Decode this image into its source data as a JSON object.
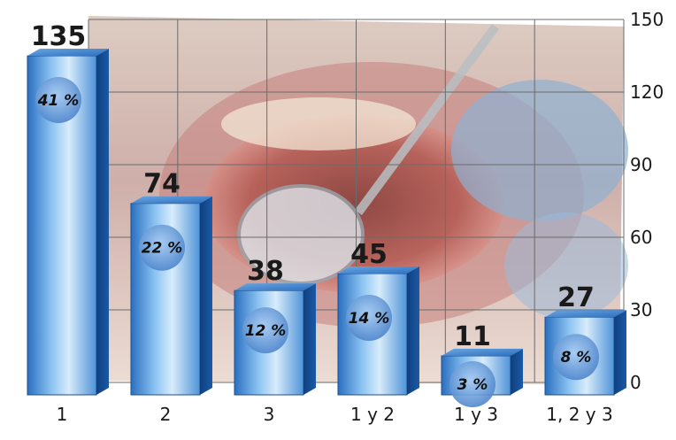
{
  "chart_data": {
    "type": "bar",
    "categories": [
      "1",
      "2",
      "3",
      "1 y 2",
      "1 y 3",
      "1, 2 y 3"
    ],
    "values": [
      135,
      74,
      38,
      45,
      11,
      27
    ],
    "percent_labels": [
      "41 %",
      "22 %",
      "12 %",
      "14 %",
      "3 %",
      "8 %"
    ],
    "ylim": [
      0,
      150
    ],
    "yticks": [
      0,
      30,
      60,
      90,
      120,
      150
    ],
    "grid": true,
    "title": "",
    "xlabel": "",
    "ylabel": "",
    "background": "dental-photo",
    "bar_color": "#1f5fa8",
    "bar_light_color": "#cfe6fb",
    "badge_color": "#5b8fd0"
  }
}
